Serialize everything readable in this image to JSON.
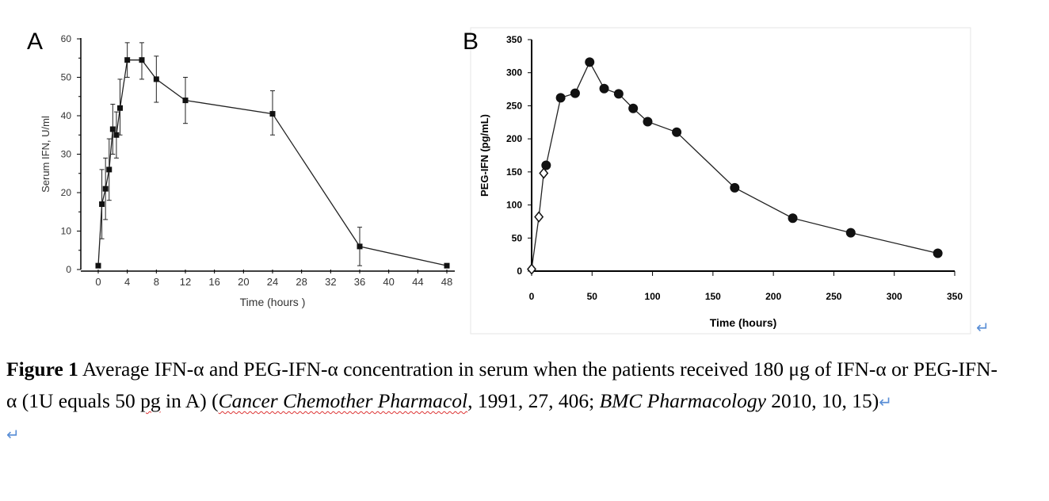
{
  "chart_data": [
    {
      "panel": "A",
      "type": "line",
      "xlabel": "Time  (hours )",
      "ylabel": "Serum  IFN, U/ml",
      "xlim": [
        0,
        48
      ],
      "ylim": [
        0,
        60
      ],
      "xticks": [
        0,
        4,
        8,
        12,
        16,
        20,
        24,
        28,
        32,
        36,
        40,
        44,
        48
      ],
      "yticks": [
        0,
        10,
        20,
        30,
        40,
        50,
        60
      ],
      "marker": "square",
      "grid": false,
      "points": [
        {
          "x": 0,
          "y": 1
        },
        {
          "x": 0.5,
          "y": 17,
          "lo": 8,
          "hi": 26
        },
        {
          "x": 1,
          "y": 21,
          "lo": 13,
          "hi": 29
        },
        {
          "x": 1.5,
          "y": 26,
          "lo": 18,
          "hi": 34
        },
        {
          "x": 2,
          "y": 36.5,
          "lo": 30,
          "hi": 43
        },
        {
          "x": 2.5,
          "y": 35,
          "lo": 29,
          "hi": 41
        },
        {
          "x": 3,
          "y": 42,
          "lo": 35,
          "hi": 49.5
        },
        {
          "x": 4,
          "y": 54.5,
          "lo": 50,
          "hi": 59
        },
        {
          "x": 6,
          "y": 54.5,
          "lo": 49.5,
          "hi": 59
        },
        {
          "x": 8,
          "y": 49.5,
          "lo": 43.5,
          "hi": 55.5
        },
        {
          "x": 12,
          "y": 44,
          "lo": 38,
          "hi": 50
        },
        {
          "x": 24,
          "y": 40.5,
          "lo": 35,
          "hi": 46.5
        },
        {
          "x": 36,
          "y": 6,
          "lo": 1,
          "hi": 11
        },
        {
          "x": 48,
          "y": 1
        }
      ]
    },
    {
      "panel": "B",
      "type": "line",
      "xlabel": "Time (hours)",
      "ylabel": "PEG-IFN (pg/mL)",
      "xlim": [
        0,
        350
      ],
      "ylim": [
        0,
        350
      ],
      "xticks": [
        0,
        50,
        100,
        150,
        200,
        250,
        300,
        350
      ],
      "yticks": [
        0,
        50,
        100,
        150,
        200,
        250,
        300,
        350
      ],
      "grid": false,
      "open_points": [
        {
          "x": 0,
          "y": 3
        },
        {
          "x": 6,
          "y": 82
        },
        {
          "x": 10,
          "y": 148
        }
      ],
      "points": [
        {
          "x": 12,
          "y": 160
        },
        {
          "x": 24,
          "y": 262
        },
        {
          "x": 36,
          "y": 269
        },
        {
          "x": 48,
          "y": 316
        },
        {
          "x": 60,
          "y": 276
        },
        {
          "x": 72,
          "y": 268
        },
        {
          "x": 84,
          "y": 246
        },
        {
          "x": 96,
          "y": 226
        },
        {
          "x": 120,
          "y": 210
        },
        {
          "x": 168,
          "y": 126
        },
        {
          "x": 216,
          "y": 80
        },
        {
          "x": 264,
          "y": 58
        },
        {
          "x": 336,
          "y": 27
        }
      ]
    }
  ],
  "caption": {
    "label": "Figure 1",
    "text1": " Average IFN-α and PEG-IFN-α concentration in serum when the patients received 180 μg of IFN-α or PEG-IFN-α (1U equals 50 ",
    "pg": "pg",
    "text2": " in A) (",
    "j1": "Cancer Chemother Pharmacol",
    "text3": ", 1991, 27, 406; ",
    "j2": "BMC Pharmacology",
    "text4": " 2010, 10, 15)",
    "return": "↵"
  }
}
